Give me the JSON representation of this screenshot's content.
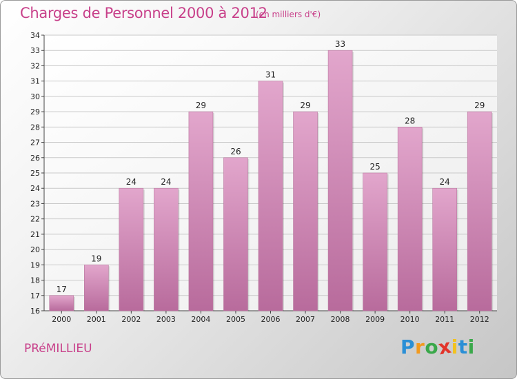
{
  "chart_data": {
    "type": "bar",
    "title": "Charges de Personnel 2000 à 2012",
    "subtitle": "(en milliers d'€)",
    "categories": [
      "2000",
      "2001",
      "2002",
      "2003",
      "2004",
      "2005",
      "2006",
      "2007",
      "2008",
      "2009",
      "2010",
      "2011",
      "2012"
    ],
    "values": [
      17,
      19,
      24,
      24,
      29,
      26,
      31,
      29,
      33,
      25,
      28,
      24,
      29
    ],
    "data_labels": [
      "17",
      "19",
      "24",
      "24",
      "29",
      "26",
      "31",
      "29",
      "33",
      "25",
      "28",
      "24",
      "29"
    ],
    "ylim": [
      16,
      34
    ],
    "yticks": [
      16,
      17,
      18,
      19,
      20,
      21,
      22,
      23,
      24,
      25,
      26,
      27,
      28,
      29,
      30,
      31,
      32,
      33,
      34
    ],
    "xlabel": "",
    "ylabel": "",
    "grid": true,
    "bar_color": "#d68fbb"
  },
  "footer": {
    "place": "PRéMILLIEU",
    "logo_letters": [
      "P",
      "r",
      "o",
      "x",
      "i",
      "t",
      "i"
    ],
    "logo_colors": [
      "#2a8fd6",
      "#f29a1e",
      "#3aa84a",
      "#e2342a",
      "#f2c21e",
      "#2a8fd6",
      "#3aa84a"
    ]
  }
}
